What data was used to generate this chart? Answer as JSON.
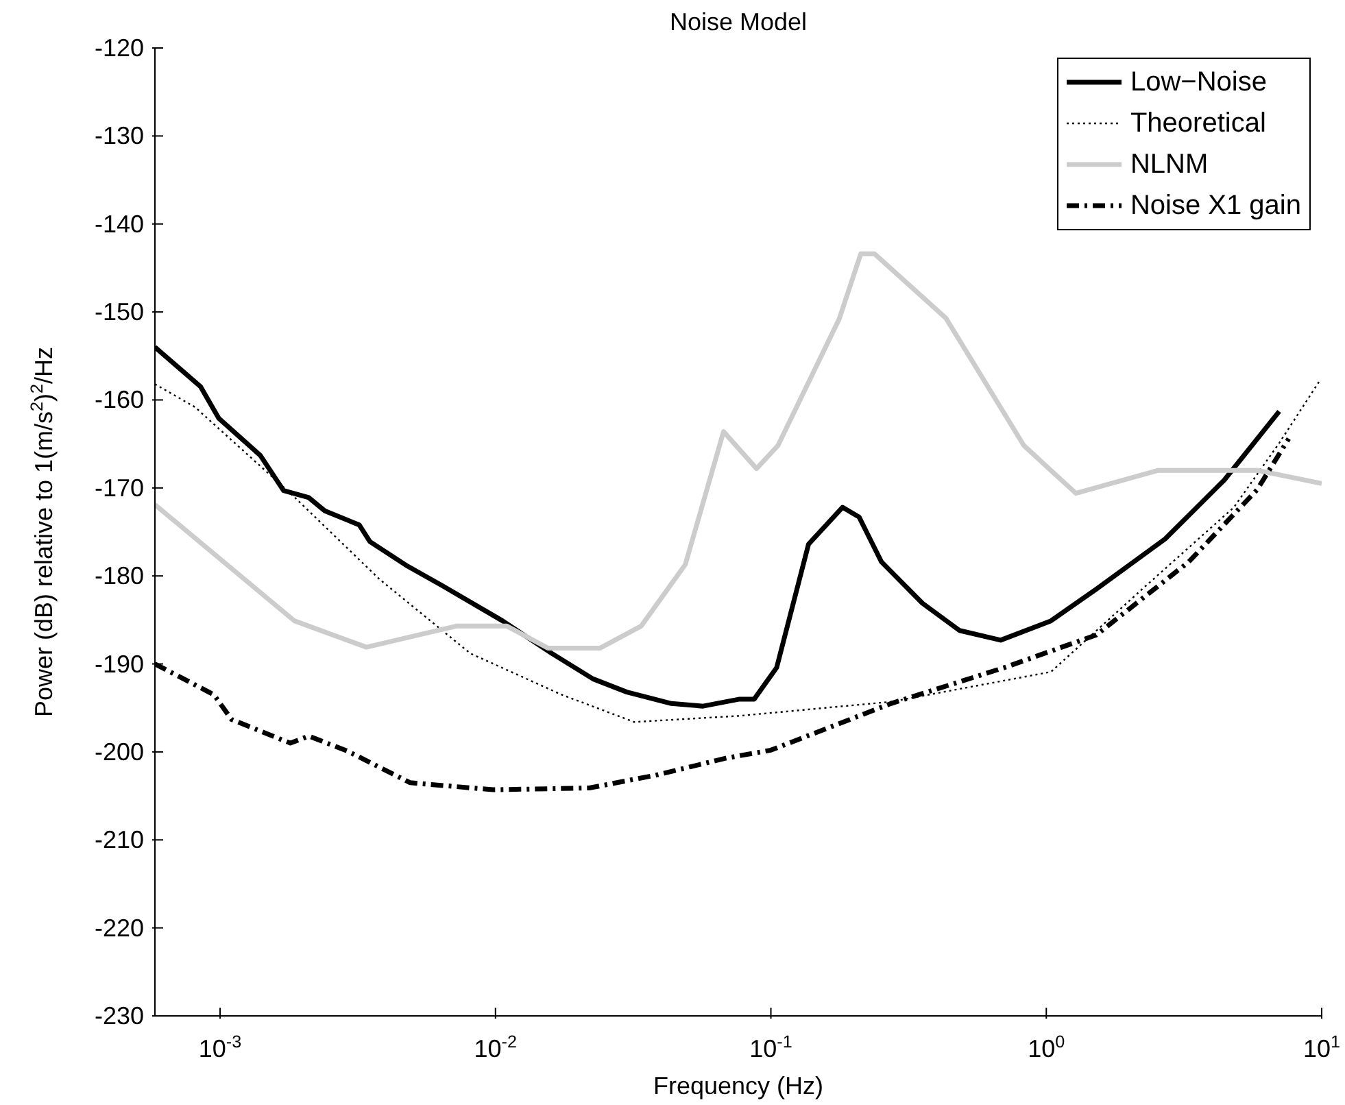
{
  "chart_data": {
    "type": "line",
    "title": "Noise Model",
    "xlabel": "Frequency (Hz)",
    "ylabel": "Power (dB) relative to 1(m/s$^{2}$)$^{2}$/Hz",
    "log": "x",
    "grid": false,
    "legend": "top right",
    "xlim": [
      0.00058,
      10
    ],
    "xticks": [
      {
        "value": 0.001,
        "label": "10$^{-3}$"
      },
      {
        "value": 0.01,
        "label": "10$^{-2}$"
      },
      {
        "value": 0.1,
        "label": "10$^{-1}$"
      },
      {
        "value": 1,
        "label": "10$^{0}$"
      },
      {
        "value": 10,
        "label": "10$^{1}$"
      }
    ],
    "ylim": [
      -230,
      -120
    ],
    "yticks": [
      -230,
      -220,
      -210,
      -200,
      -190,
      -180,
      -170,
      -160,
      -150,
      -140,
      -130,
      -120
    ],
    "series": [
      {
        "name": "Low−Noise",
        "color": "#000000",
        "line_style": "solid",
        "x": [
          0.00058,
          0.00085,
          0.00099,
          0.0014,
          0.0017,
          0.0021,
          0.0024,
          0.0032,
          0.0035,
          0.0048,
          0.0064,
          0.0106,
          0.016,
          0.0226,
          0.03,
          0.0435,
          0.0567,
          0.077,
          0.087,
          0.105,
          0.137,
          0.182,
          0.209,
          0.252,
          0.355,
          0.484,
          0.683,
          1.04,
          1.52,
          2.7,
          4.43,
          7.01
        ],
        "values": [
          -154,
          -158.5,
          -162.1,
          -166.3,
          -170.3,
          -171.1,
          -172.6,
          -174.2,
          -176.1,
          -178.9,
          -181.1,
          -185.1,
          -188.8,
          -191.7,
          -193.2,
          -194.5,
          -194.8,
          -194,
          -194,
          -190.4,
          -176.4,
          -172.2,
          -173.3,
          -178.4,
          -183.1,
          -186.2,
          -187.3,
          -185.1,
          -181.5,
          -175.8,
          -169.1,
          -161.3
        ]
      },
      {
        "name": "Theoretical",
        "color": "#000000",
        "line_style": "dotted",
        "x": [
          0.00058,
          0.00081,
          0.0018,
          0.0038,
          0.0081,
          0.0174,
          0.0319,
          0.077,
          0.273,
          1.04,
          2.23,
          4.8,
          7.01,
          9.89
        ],
        "values": [
          -158.2,
          -160.8,
          -170.6,
          -180.4,
          -188.8,
          -193.5,
          -196.6,
          -195.9,
          -194.3,
          -190.9,
          -181.5,
          -172.2,
          -164.9,
          -157.7
        ]
      },
      {
        "name": "NLNM",
        "color": "#cccccc",
        "line_style": "solid",
        "x": [
          0.00058,
          0.00186,
          0.0034,
          0.0072,
          0.011,
          0.0155,
          0.024,
          0.0338,
          0.0489,
          0.0673,
          0.0887,
          0.106,
          0.177,
          0.212,
          0.238,
          0.432,
          0.83,
          1.28,
          2.55,
          5.83,
          10
        ],
        "values": [
          -171.9,
          -185.1,
          -188.1,
          -185.7,
          -185.7,
          -188.2,
          -188.2,
          -185.7,
          -178.7,
          -163.6,
          -167.8,
          -165.2,
          -150.8,
          -143.4,
          -143.4,
          -150.7,
          -165.2,
          -170.6,
          -168,
          -168,
          -169.5
        ]
      },
      {
        "name": "Noise X1 gain",
        "color": "#000000",
        "line_style": "dashed",
        "x": [
          0.00058,
          0.00095,
          0.0011,
          0.0018,
          0.0021,
          0.0029,
          0.0049,
          0.0098,
          0.0219,
          0.0388,
          0.0689,
          0.1,
          0.273,
          0.707,
          1.52,
          3.29,
          5.83,
          7.59
        ],
        "values": [
          -190,
          -193.5,
          -196.3,
          -199,
          -198.2,
          -199.9,
          -203.5,
          -204.3,
          -204.1,
          -202.6,
          -200.7,
          -199.8,
          -194.5,
          -190.4,
          -186.7,
          -178.4,
          -170.2,
          -164.4
        ]
      }
    ]
  }
}
